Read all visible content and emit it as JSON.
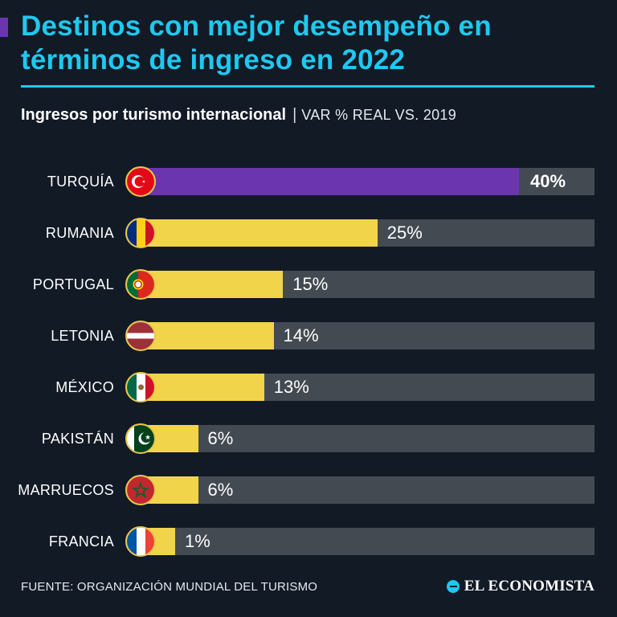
{
  "title": "Destinos con mejor desempeño en términos de ingreso en 2022",
  "subtitle": {
    "main": "Ingresos por turismo internacional",
    "separator": "|",
    "measure": "VAR % REAL VS. 2019"
  },
  "colors": {
    "title": "#1ec9ef",
    "highlight_bar": "#6b35b0",
    "bar": "#f2d44a",
    "track": "#444a52",
    "background": "#121a26"
  },
  "chart_data": {
    "type": "bar",
    "orientation": "horizontal",
    "title": "Ingresos por turismo internacional",
    "ylabel": "VAR % REAL VS. 2019",
    "xlim": [
      0,
      100
    ],
    "unit": "%",
    "categories": [
      "TURQUÍA",
      "RUMANIA",
      "PORTUGAL",
      "LETONIA",
      "MÉXICO",
      "PAKISTÁN",
      "MARRUECOS",
      "FRANCIA"
    ],
    "values": [
      40,
      25,
      15,
      14,
      13,
      6,
      6,
      1
    ],
    "labels": [
      "40%",
      "25%",
      "15%",
      "14%",
      "13%",
      "6%",
      "6%",
      "1%"
    ],
    "flags": [
      "turkey-flag-icon",
      "romania-flag-icon",
      "portugal-flag-icon",
      "latvia-flag-icon",
      "mexico-flag-icon",
      "pakistan-flag-icon",
      "morocco-flag-icon",
      "france-flag-icon"
    ],
    "highlight_index": 0
  },
  "footer": {
    "source": "FUENTE: ORGANIZACIÓN MUNDIAL DEL TURISMO",
    "brand": "EL ECONOMISTA"
  }
}
